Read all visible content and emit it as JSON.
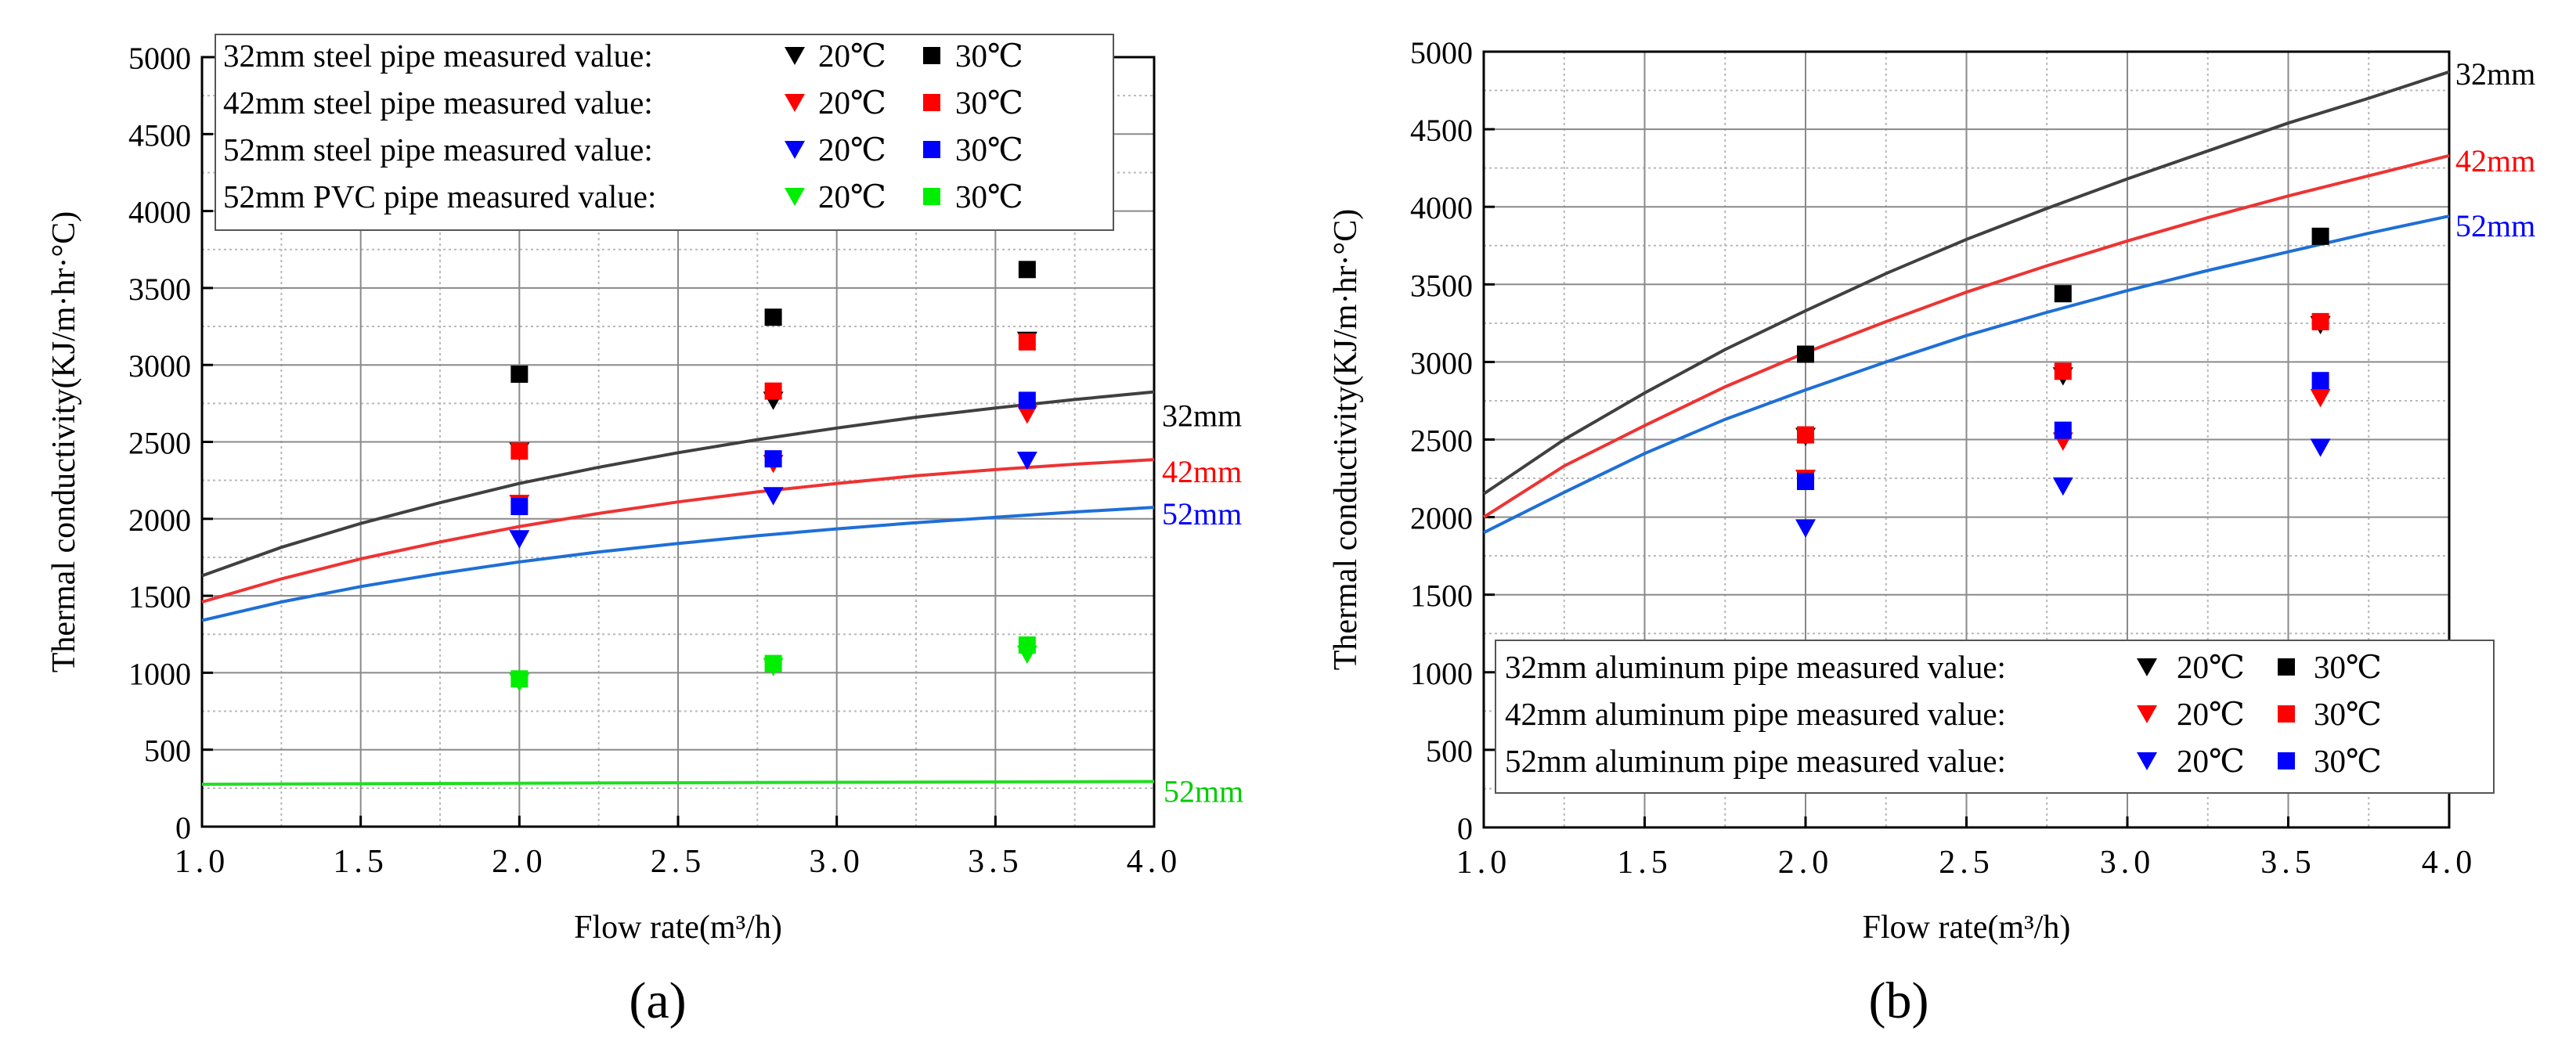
{
  "figure": {
    "panel_a_label": "(a)",
    "panel_b_label": "(b)"
  },
  "chart_data": [
    {
      "id": "a",
      "type": "scatter",
      "panel_label": "(a)",
      "xlabel": "Flow rate(m³/h)",
      "ylabel": "Thermal conductivity(KJ/m·hr·°C)",
      "xlim": [
        1.0,
        4.0
      ],
      "ylim": [
        0,
        5000
      ],
      "xticks": [
        1.0,
        1.5,
        2.0,
        2.5,
        3.0,
        3.5,
        4.0
      ],
      "xtick_labels": [
        "1.0",
        "1.5",
        "2.0",
        "2.5",
        "3.0",
        "3.5",
        "4.0"
      ],
      "yticks": [
        0,
        500,
        1000,
        1500,
        2000,
        2500,
        3000,
        3500,
        4000,
        4500,
        5000
      ],
      "ytick_labels": [
        "0",
        "500",
        "1000",
        "1500",
        "2000",
        "2500",
        "3000",
        "3500",
        "4000",
        "4500",
        "5000"
      ],
      "grid": true,
      "legend_position": "top-left",
      "curves": [
        {
          "label": "32mm",
          "color": "#404040",
          "x": [
            1.0,
            1.25,
            1.5,
            1.75,
            2.0,
            2.25,
            2.5,
            2.75,
            3.0,
            3.25,
            3.5,
            3.75,
            4.0
          ],
          "y": [
            1630,
            1815,
            1970,
            2105,
            2230,
            2335,
            2430,
            2515,
            2590,
            2660,
            2720,
            2775,
            2825
          ]
        },
        {
          "label": "42mm",
          "color": "#ee3333",
          "x": [
            1.0,
            1.25,
            1.5,
            1.75,
            2.0,
            2.25,
            2.5,
            2.75,
            3.0,
            3.25,
            3.5,
            3.75,
            4.0
          ],
          "y": [
            1460,
            1610,
            1740,
            1850,
            1950,
            2035,
            2110,
            2175,
            2230,
            2280,
            2320,
            2355,
            2385
          ]
        },
        {
          "label": "52mm",
          "color": "#1f6fd6",
          "x": [
            1.0,
            1.25,
            1.5,
            1.75,
            2.0,
            2.25,
            2.5,
            2.75,
            3.0,
            3.25,
            3.5,
            3.75,
            4.0
          ],
          "y": [
            1340,
            1460,
            1560,
            1645,
            1720,
            1785,
            1840,
            1890,
            1935,
            1975,
            2010,
            2045,
            2075
          ]
        },
        {
          "label": "52mm",
          "color": "#22dd22",
          "x": [
            1.0,
            2.0,
            3.0,
            4.0
          ],
          "y": [
            275,
            282,
            288,
            293
          ]
        }
      ],
      "legend": [
        {
          "label": "32mm steel pipe measured value:",
          "color": "#000000",
          "t20": "20℃",
          "t30": "30℃"
        },
        {
          "label": "42mm steel pipe measured value:",
          "color": "#ff0000",
          "t20": "20℃",
          "t30": "30℃"
        },
        {
          "label": "52mm steel pipe measured value:",
          "color": "#0000ff",
          "t20": "20℃",
          "t30": "30℃"
        },
        {
          "label": "52mm PVC pipe measured value:",
          "color": "#00ee00",
          "t20": "20℃",
          "t30": "30℃"
        }
      ],
      "series": [
        {
          "name": "32mm steel 20℃",
          "marker": "triangle-down",
          "color": "#000000",
          "x": [
            2.0,
            2.8,
            3.6
          ],
          "y": [
            2440,
            2770,
            3160
          ]
        },
        {
          "name": "32mm steel 30℃",
          "marker": "square",
          "color": "#000000",
          "x": [
            2.0,
            2.8,
            3.6
          ],
          "y": [
            2940,
            3310,
            3620
          ]
        },
        {
          "name": "42mm steel 20℃",
          "marker": "triangle-down",
          "color": "#ff0000",
          "x": [
            2.0,
            2.8,
            3.6
          ],
          "y": [
            2100,
            2360,
            2680
          ]
        },
        {
          "name": "42mm steel 30℃",
          "marker": "square",
          "color": "#ff0000",
          "x": [
            2.0,
            2.8,
            3.6
          ],
          "y": [
            2440,
            2830,
            3150
          ]
        },
        {
          "name": "52mm steel 20℃",
          "marker": "triangle-down",
          "color": "#0000ff",
          "x": [
            2.0,
            2.8,
            3.6
          ],
          "y": [
            1870,
            2150,
            2380
          ]
        },
        {
          "name": "52mm steel 30℃",
          "marker": "square",
          "color": "#0000ff",
          "x": [
            2.0,
            2.8,
            3.6
          ],
          "y": [
            2080,
            2390,
            2770
          ]
        },
        {
          "name": "52mm PVC 20℃",
          "marker": "triangle-down",
          "color": "#00ee00",
          "x": [
            2.0,
            2.8,
            3.6
          ],
          "y": [
            940,
            1040,
            1120
          ]
        },
        {
          "name": "52mm PVC 30℃",
          "marker": "square",
          "color": "#00ee00",
          "x": [
            2.0,
            2.8,
            3.6
          ],
          "y": [
            960,
            1060,
            1180
          ]
        }
      ]
    },
    {
      "id": "b",
      "type": "scatter",
      "panel_label": "(b)",
      "xlabel": "Flow rate(m³/h)",
      "ylabel": "Thermal conductivity(KJ/m·hr·°C)",
      "xlim": [
        1.0,
        4.0
      ],
      "ylim": [
        0,
        5000
      ],
      "xticks": [
        1.0,
        1.5,
        2.0,
        2.5,
        3.0,
        3.5,
        4.0
      ],
      "xtick_labels": [
        "1.0",
        "1.5",
        "2.0",
        "2.5",
        "3.0",
        "3.5",
        "4.0"
      ],
      "yticks": [
        0,
        500,
        1000,
        1500,
        2000,
        2500,
        3000,
        3500,
        4000,
        4500,
        5000
      ],
      "ytick_labels": [
        "0",
        "500",
        "1000",
        "1500",
        "2000",
        "2500",
        "3000",
        "3500",
        "4000",
        "4500",
        "5000"
      ],
      "grid": true,
      "legend_position": "bottom-right",
      "curves": [
        {
          "label": "32mm",
          "color": "#404040",
          "x": [
            1.0,
            1.25,
            1.5,
            1.75,
            2.0,
            2.25,
            2.5,
            2.75,
            3.0,
            3.25,
            3.5,
            3.75,
            4.0
          ],
          "y": [
            2150,
            2500,
            2800,
            3080,
            3330,
            3570,
            3790,
            3990,
            4180,
            4360,
            4540,
            4700,
            4870
          ]
        },
        {
          "label": "42mm",
          "color": "#ee3333",
          "x": [
            1.0,
            1.25,
            1.5,
            1.75,
            2.0,
            2.25,
            2.5,
            2.75,
            3.0,
            3.25,
            3.5,
            3.75,
            4.0
          ],
          "y": [
            2000,
            2330,
            2590,
            2840,
            3060,
            3260,
            3450,
            3620,
            3780,
            3930,
            4070,
            4200,
            4330
          ]
        },
        {
          "label": "52mm",
          "color": "#1f6fd6",
          "x": [
            1.0,
            1.25,
            1.5,
            1.75,
            2.0,
            2.25,
            2.5,
            2.75,
            3.0,
            3.25,
            3.5,
            3.75,
            4.0
          ],
          "y": [
            1900,
            2160,
            2410,
            2630,
            2820,
            3000,
            3170,
            3320,
            3460,
            3590,
            3710,
            3830,
            3940
          ]
        }
      ],
      "legend": [
        {
          "label": "32mm aluminum  pipe measured value:",
          "color": "#000000",
          "t20": "20℃",
          "t30": "30℃"
        },
        {
          "label": "42mm aluminum  pipe measured value:",
          "color": "#ff0000",
          "t20": "20℃",
          "t30": "30℃"
        },
        {
          "label": "52mm aluminum  pipe measured value:",
          "color": "#0000ff",
          "t20": "20℃",
          "t30": "30℃"
        }
      ],
      "series": [
        {
          "name": "32mm aluminum 20℃",
          "marker": "triangle-down",
          "color": "#000000",
          "x": [
            2.0,
            2.8,
            3.6
          ],
          "y": [
            2520,
            2910,
            3240
          ]
        },
        {
          "name": "32mm aluminum 30℃",
          "marker": "square",
          "color": "#000000",
          "x": [
            2.0,
            2.8,
            3.6
          ],
          "y": [
            3050,
            3440,
            3810
          ]
        },
        {
          "name": "42mm aluminum 20℃",
          "marker": "triangle-down",
          "color": "#ff0000",
          "x": [
            2.0,
            2.8,
            3.6
          ],
          "y": [
            2250,
            2490,
            2770
          ]
        },
        {
          "name": "42mm aluminum 30℃",
          "marker": "square",
          "color": "#ff0000",
          "x": [
            2.0,
            2.8,
            3.6
          ],
          "y": [
            2530,
            2940,
            3260
          ]
        },
        {
          "name": "52mm aluminum 20℃",
          "marker": "triangle-down",
          "color": "#0000ff",
          "x": [
            2.0,
            2.8,
            3.6
          ],
          "y": [
            1930,
            2200,
            2450
          ]
        },
        {
          "name": "52mm aluminum 30℃",
          "marker": "square",
          "color": "#0000ff",
          "x": [
            2.0,
            2.8,
            3.6
          ],
          "y": [
            2230,
            2560,
            2880
          ]
        }
      ]
    }
  ]
}
